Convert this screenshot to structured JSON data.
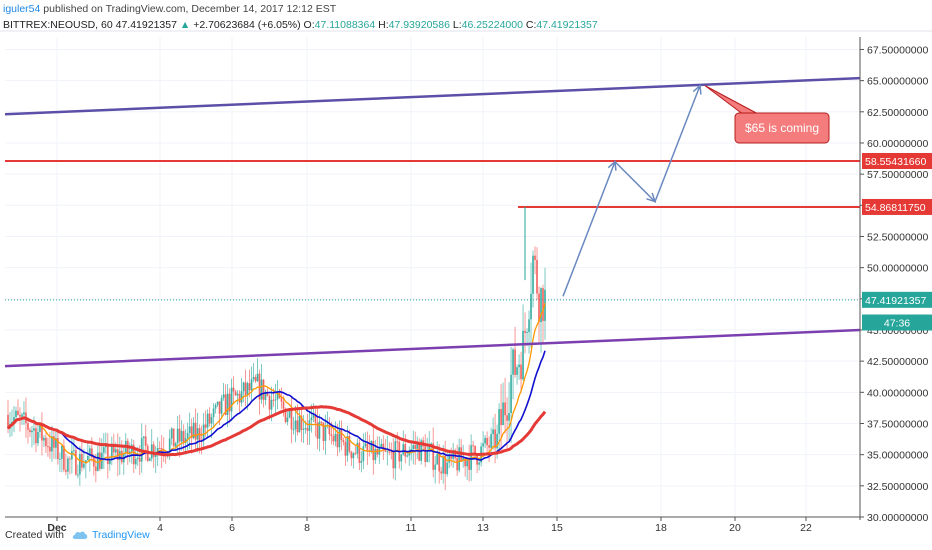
{
  "header": {
    "author": "iguler54",
    "published_text": "published on TradingView.com, December 14, 2017 12:12 EST",
    "symbol": "BITTREX:NEOUSD, 60",
    "last": "47.41921357",
    "change_arrow": "▲",
    "change": "+2.70623684 (+6.05%)",
    "o_label": "O:",
    "o": "47.11088364",
    "h_label": "H:",
    "h": "47.93920586",
    "l_label": "L:",
    "l": "46.25224000",
    "c_label": "C:",
    "c": "47.41921357"
  },
  "footer": {
    "created_with": "Created with",
    "brand": "TradingView"
  },
  "colors": {
    "up": "#26a69a",
    "down": "#ef5350",
    "price_line": "#26a69a",
    "ma_fast": "#ff9800",
    "ma_mid": "#1010d0",
    "ma_slow": "#e53935",
    "channel_top": "#5b4fa8",
    "channel_bottom": "#7b3fb0",
    "hline": "#e53935",
    "arrow": "#6a89c0",
    "annotation_bg": "#f47c7c",
    "annotation_border": "#b71c1c"
  },
  "chart_data": {
    "type": "candlestick",
    "y_axis_ticks": [
      "67.50000000",
      "65.00000000",
      "62.50000000",
      "60.00000000",
      "57.50000000",
      "55.00000000",
      "52.50000000",
      "50.00000000",
      "47.50000000",
      "45.00000000",
      "42.50000000",
      "40.00000000",
      "37.50000000",
      "35.00000000",
      "32.50000000",
      "30.00000000"
    ],
    "ylim": [
      30,
      68.5
    ],
    "x_axis_ticks": [
      "Dec",
      "4",
      "6",
      "8",
      "11",
      "13",
      "15",
      "18",
      "20",
      "22"
    ],
    "price_labels": [
      {
        "id": "hline-58",
        "value": 58.5543166,
        "text": "58.55431660",
        "color": "#e53935"
      },
      {
        "id": "hline-54",
        "value": 54.8681175,
        "text": "54.86811750",
        "color": "#e53935"
      },
      {
        "id": "last",
        "value": 47.41921357,
        "text": "47.41921357",
        "color": "#26a69a"
      },
      {
        "id": "countdown",
        "value": 45.6,
        "text": "47:36",
        "color": "#26a69a"
      }
    ],
    "horizontal_lines": [
      {
        "value": 58.5543166,
        "from_x": 0,
        "to_x": 1
      },
      {
        "value": 54.8681175,
        "from_x": 0.6,
        "to_x": 1
      }
    ],
    "channel": {
      "top": {
        "start": 62.3,
        "end": 65.2
      },
      "bottom": {
        "start": 42.1,
        "end": 45.0
      }
    },
    "annotation": {
      "text": "$65 is coming",
      "anchor_value": 64.6
    },
    "projection_path": [
      47.7,
      58.5,
      55.3,
      64.6
    ],
    "candles_summary": {
      "start": 38.2,
      "end": 47.42,
      "high": 54.87,
      "low": 30.2
    }
  }
}
